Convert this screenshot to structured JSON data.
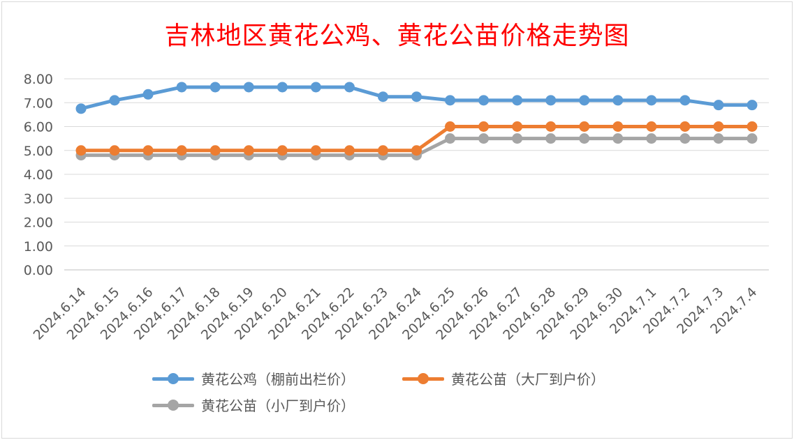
{
  "chart_data": {
    "type": "line",
    "title": "吉林地区黄花公鸡、黄花公苗价格走势图",
    "categories": [
      "2024.6.14",
      "2024.6.15",
      "2024.6.16",
      "2024.6.17",
      "2024.6.18",
      "2024.6.19",
      "2024.6.20",
      "2024.6.21",
      "2024.6.22",
      "2024.6.23",
      "2024.6.24",
      "2024.6.25",
      "2024.6.26",
      "2024.6.27",
      "2024.6.28",
      "2024.6.29",
      "2024.6.30",
      "2024.7.1",
      "2024.7.2",
      "2024.7.3",
      "2024.7.4"
    ],
    "ylim": [
      0,
      8
    ],
    "yticks": [
      "0.00",
      "1.00",
      "2.00",
      "3.00",
      "4.00",
      "5.00",
      "6.00",
      "7.00",
      "8.00"
    ],
    "grid": true,
    "legend_position": "bottom",
    "series": [
      {
        "name": "黄花公鸡（棚前出栏价）",
        "color": "#5b9bd5",
        "values": [
          6.75,
          7.1,
          7.35,
          7.65,
          7.65,
          7.65,
          7.65,
          7.65,
          7.65,
          7.25,
          7.25,
          7.1,
          7.1,
          7.1,
          7.1,
          7.1,
          7.1,
          7.1,
          7.1,
          6.9,
          6.9
        ]
      },
      {
        "name": "黄花公苗（大厂到户价）",
        "color": "#ed7d31",
        "values": [
          5.0,
          5.0,
          5.0,
          5.0,
          5.0,
          5.0,
          5.0,
          5.0,
          5.0,
          5.0,
          5.0,
          6.0,
          6.0,
          6.0,
          6.0,
          6.0,
          6.0,
          6.0,
          6.0,
          6.0,
          6.0
        ]
      },
      {
        "name": "黄花公苗（小厂到户价）",
        "color": "#a5a5a5",
        "values": [
          4.8,
          4.8,
          4.8,
          4.8,
          4.8,
          4.8,
          4.8,
          4.8,
          4.8,
          4.8,
          4.8,
          5.5,
          5.5,
          5.5,
          5.5,
          5.5,
          5.5,
          5.5,
          5.5,
          5.5,
          5.5
        ]
      }
    ]
  }
}
